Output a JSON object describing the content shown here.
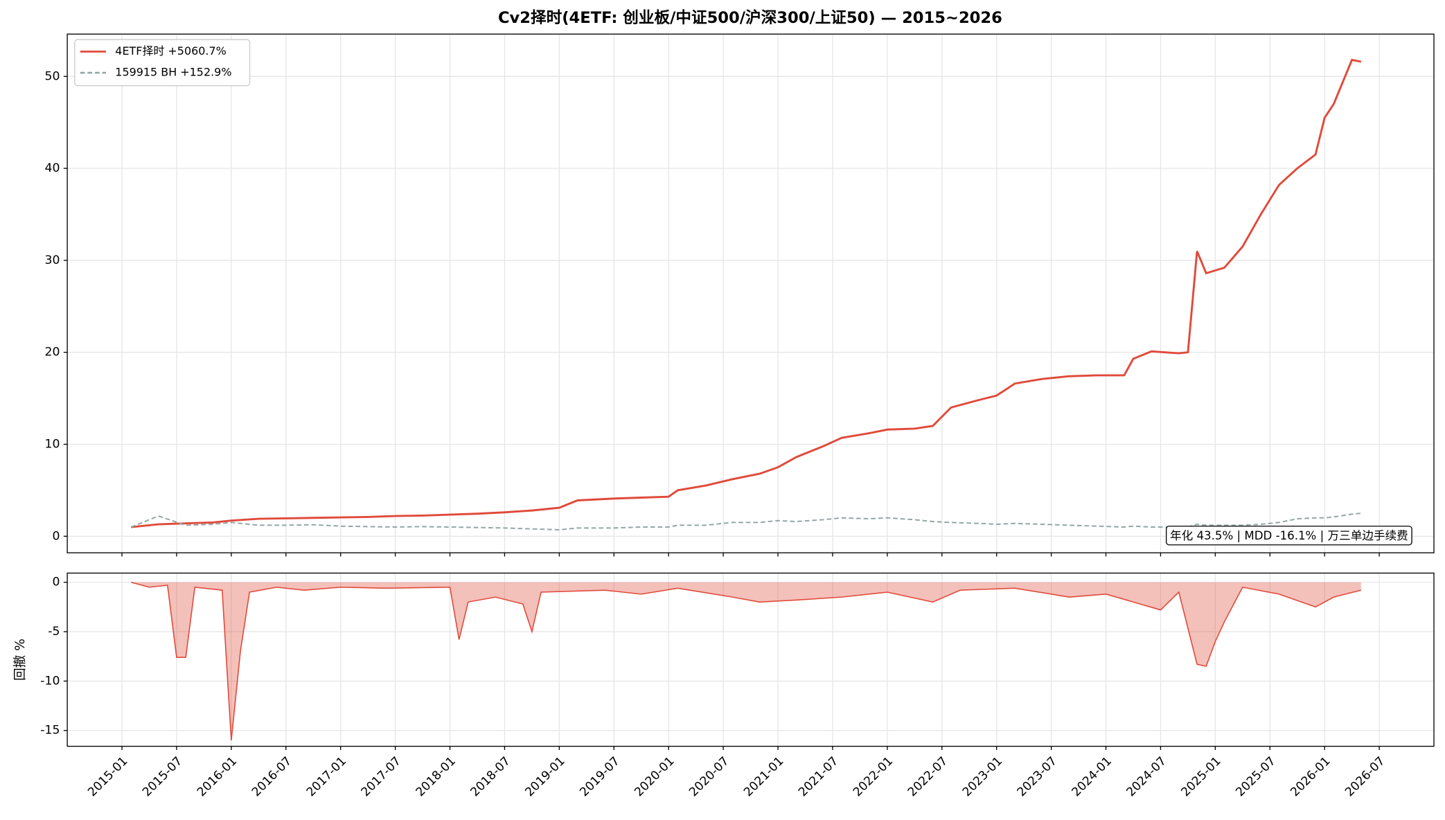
{
  "chart_data": [
    {
      "type": "line",
      "title": "Cv2择时(4ETF: 创业板/中证500/沪深300/上证50) — 2015~2026",
      "annotation": "年化 43.5% | MDD -16.1% | 万三单边手续费",
      "legend": "upper left",
      "grid": true,
      "xlim": [
        "2014-07",
        "2027-01"
      ],
      "ylim": [
        -1.8,
        54.6
      ],
      "yticks": [
        0,
        10,
        20,
        30,
        40,
        50
      ],
      "x": [
        "2015-02",
        "2015-05",
        "2015-08",
        "2015-11",
        "2016-01",
        "2016-04",
        "2016-07",
        "2016-10",
        "2017-01",
        "2017-04",
        "2017-07",
        "2017-10",
        "2018-01",
        "2018-04",
        "2018-07",
        "2018-10",
        "2019-01",
        "2019-03",
        "2019-07",
        "2019-10",
        "2020-01",
        "2020-02",
        "2020-05",
        "2020-08",
        "2020-11",
        "2021-01",
        "2021-03",
        "2021-06",
        "2021-08",
        "2021-11",
        "2022-01",
        "2022-04",
        "2022-06",
        "2022-08",
        "2022-11",
        "2023-01",
        "2023-03",
        "2023-06",
        "2023-09",
        "2023-12",
        "2024-03",
        "2024-04",
        "2024-06",
        "2024-09",
        "2024-10",
        "2024-11",
        "2024-12",
        "2025-02",
        "2025-04",
        "2025-06",
        "2025-08",
        "2025-10",
        "2025-12",
        "2026-01",
        "2026-02",
        "2026-04",
        "2026-05"
      ],
      "series": [
        {
          "name": "4ETF择时 +5060.7%",
          "color": "#e04a3a",
          "style": "solid",
          "values": [
            1.0,
            1.3,
            1.4,
            1.5,
            1.7,
            1.9,
            1.95,
            2.0,
            2.05,
            2.1,
            2.2,
            2.25,
            2.35,
            2.45,
            2.6,
            2.8,
            3.1,
            3.9,
            4.1,
            4.2,
            4.3,
            5.0,
            5.5,
            6.2,
            6.8,
            7.5,
            8.6,
            9.8,
            10.7,
            11.2,
            11.6,
            11.7,
            12.0,
            14.0,
            14.8,
            15.3,
            16.6,
            17.1,
            17.4,
            17.5,
            17.5,
            19.3,
            20.1,
            19.9,
            20.0,
            31.0,
            28.6,
            29.2,
            31.5,
            35.0,
            38.2,
            40.0,
            41.5,
            45.5,
            47.0,
            51.8,
            51.6
          ]
        },
        {
          "name": "159915 BH +152.9%",
          "color": "#95a5a6",
          "style": "dashed",
          "values": [
            1.0,
            2.2,
            1.2,
            1.3,
            1.5,
            1.2,
            1.2,
            1.25,
            1.1,
            1.05,
            1.0,
            1.05,
            1.0,
            0.95,
            0.9,
            0.8,
            0.7,
            0.9,
            0.9,
            1.0,
            1.0,
            1.2,
            1.2,
            1.5,
            1.5,
            1.7,
            1.6,
            1.8,
            2.0,
            1.9,
            2.0,
            1.8,
            1.6,
            1.5,
            1.4,
            1.3,
            1.4,
            1.3,
            1.2,
            1.1,
            1.0,
            1.1,
            1.0,
            1.0,
            1.0,
            1.3,
            1.2,
            1.2,
            1.2,
            1.3,
            1.5,
            1.9,
            2.0,
            2.0,
            2.1,
            2.4,
            2.5
          ]
        }
      ]
    },
    {
      "type": "area",
      "ylabel": "回撤 %",
      "grid": true,
      "color": "#e04a3a",
      "xlim": [
        "2014-07",
        "2027-01"
      ],
      "xticks": [
        "2015-01",
        "2015-07",
        "2016-01",
        "2016-07",
        "2017-01",
        "2017-07",
        "2018-01",
        "2018-07",
        "2019-01",
        "2019-07",
        "2020-01",
        "2020-07",
        "2021-01",
        "2021-07",
        "2022-01",
        "2022-07",
        "2023-01",
        "2023-07",
        "2024-01",
        "2024-07",
        "2025-01",
        "2025-07",
        "2026-01",
        "2026-07"
      ],
      "ylim": [
        -16.6,
        0.93
      ],
      "yticks": [
        0,
        -5,
        -10,
        -15
      ],
      "x": [
        "2015-02",
        "2015-04",
        "2015-06",
        "2015-07",
        "2015-08",
        "2015-09",
        "2015-12",
        "2016-01",
        "2016-02",
        "2016-03",
        "2016-06",
        "2016-09",
        "2017-01",
        "2017-06",
        "2018-01",
        "2018-02",
        "2018-03",
        "2018-06",
        "2018-09",
        "2018-10",
        "2018-11",
        "2019-06",
        "2019-10",
        "2020-02",
        "2020-08",
        "2020-11",
        "2021-03",
        "2021-08",
        "2022-01",
        "2022-06",
        "2022-09",
        "2023-03",
        "2023-09",
        "2024-01",
        "2024-04",
        "2024-07",
        "2024-09",
        "2024-11",
        "2024-12",
        "2025-01",
        "2025-02",
        "2025-04",
        "2025-08",
        "2025-12",
        "2026-02",
        "2026-05"
      ],
      "values": [
        0,
        -0.5,
        -0.3,
        -7.6,
        -7.6,
        -0.5,
        -0.8,
        -16.0,
        -7.0,
        -1.0,
        -0.5,
        -0.8,
        -0.5,
        -0.6,
        -0.5,
        -5.8,
        -2.0,
        -1.5,
        -2.2,
        -5.0,
        -1.0,
        -0.8,
        -1.2,
        -0.6,
        -1.5,
        -2.0,
        -1.8,
        -1.5,
        -1.0,
        -2.0,
        -0.8,
        -0.6,
        -1.5,
        -1.2,
        -2.0,
        -2.8,
        -1.0,
        -8.3,
        -8.5,
        -6.0,
        -4.0,
        -0.5,
        -1.2,
        -2.5,
        -1.5,
        -0.8
      ]
    }
  ]
}
